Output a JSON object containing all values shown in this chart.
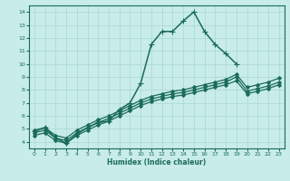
{
  "bg_color": "#c8ece8",
  "line_color": "#1a6b5a",
  "grid_color": "#a8d8d0",
  "xlabel": "Humidex (Indice chaleur)",
  "ylim": [
    3.5,
    14.5
  ],
  "xlim": [
    -0.5,
    23.5
  ],
  "yticks": [
    4,
    5,
    6,
    7,
    8,
    9,
    10,
    11,
    12,
    13,
    14
  ],
  "xticks": [
    0,
    1,
    2,
    3,
    4,
    5,
    6,
    7,
    8,
    9,
    10,
    11,
    12,
    13,
    14,
    15,
    16,
    17,
    18,
    19,
    20,
    21,
    22,
    23
  ],
  "series": [
    {
      "x": [
        0,
        1,
        2,
        3,
        4,
        5,
        6,
        7,
        8,
        9,
        10,
        11,
        12,
        13,
        14,
        15,
        16,
        17,
        18,
        19
      ],
      "y": [
        4.8,
        5.1,
        4.3,
        3.9,
        4.6,
        5.1,
        5.5,
        5.6,
        6.5,
        7.0,
        8.5,
        11.5,
        12.5,
        12.5,
        13.3,
        14.0,
        12.5,
        11.5,
        10.8,
        10.0
      ],
      "marker": "+",
      "markersize": 4,
      "linewidth": 1.1
    },
    {
      "x": [
        0,
        1,
        2,
        3,
        4,
        5,
        6,
        7,
        8,
        9,
        10,
        11,
        12,
        13,
        14,
        15,
        16,
        17,
        18,
        19,
        20,
        21,
        22,
        23
      ],
      "y": [
        4.9,
        5.1,
        4.5,
        4.3,
        4.9,
        5.3,
        5.7,
        6.0,
        6.4,
        6.8,
        7.2,
        7.5,
        7.7,
        7.9,
        8.0,
        8.2,
        8.4,
        8.6,
        8.8,
        9.2,
        8.2,
        8.4,
        8.6,
        8.9
      ],
      "marker": "D",
      "markersize": 2,
      "linewidth": 0.9
    },
    {
      "x": [
        0,
        1,
        2,
        3,
        4,
        5,
        6,
        7,
        8,
        9,
        10,
        11,
        12,
        13,
        14,
        15,
        16,
        17,
        18,
        19,
        20,
        21,
        22,
        23
      ],
      "y": [
        4.7,
        4.9,
        4.3,
        4.1,
        4.7,
        5.1,
        5.5,
        5.8,
        6.2,
        6.6,
        7.0,
        7.3,
        7.5,
        7.7,
        7.8,
        8.0,
        8.2,
        8.4,
        8.6,
        9.0,
        7.9,
        8.1,
        8.3,
        8.6
      ],
      "marker": "D",
      "markersize": 2,
      "linewidth": 0.9
    },
    {
      "x": [
        0,
        1,
        2,
        3,
        4,
        5,
        6,
        7,
        8,
        9,
        10,
        11,
        12,
        13,
        14,
        15,
        16,
        17,
        18,
        19,
        20,
        21,
        22,
        23
      ],
      "y": [
        4.5,
        4.7,
        4.1,
        3.9,
        4.5,
        4.9,
        5.3,
        5.6,
        6.0,
        6.4,
        6.8,
        7.1,
        7.3,
        7.5,
        7.6,
        7.8,
        8.0,
        8.2,
        8.4,
        8.7,
        7.7,
        7.9,
        8.1,
        8.4
      ],
      "marker": "D",
      "markersize": 2,
      "linewidth": 0.9
    }
  ]
}
